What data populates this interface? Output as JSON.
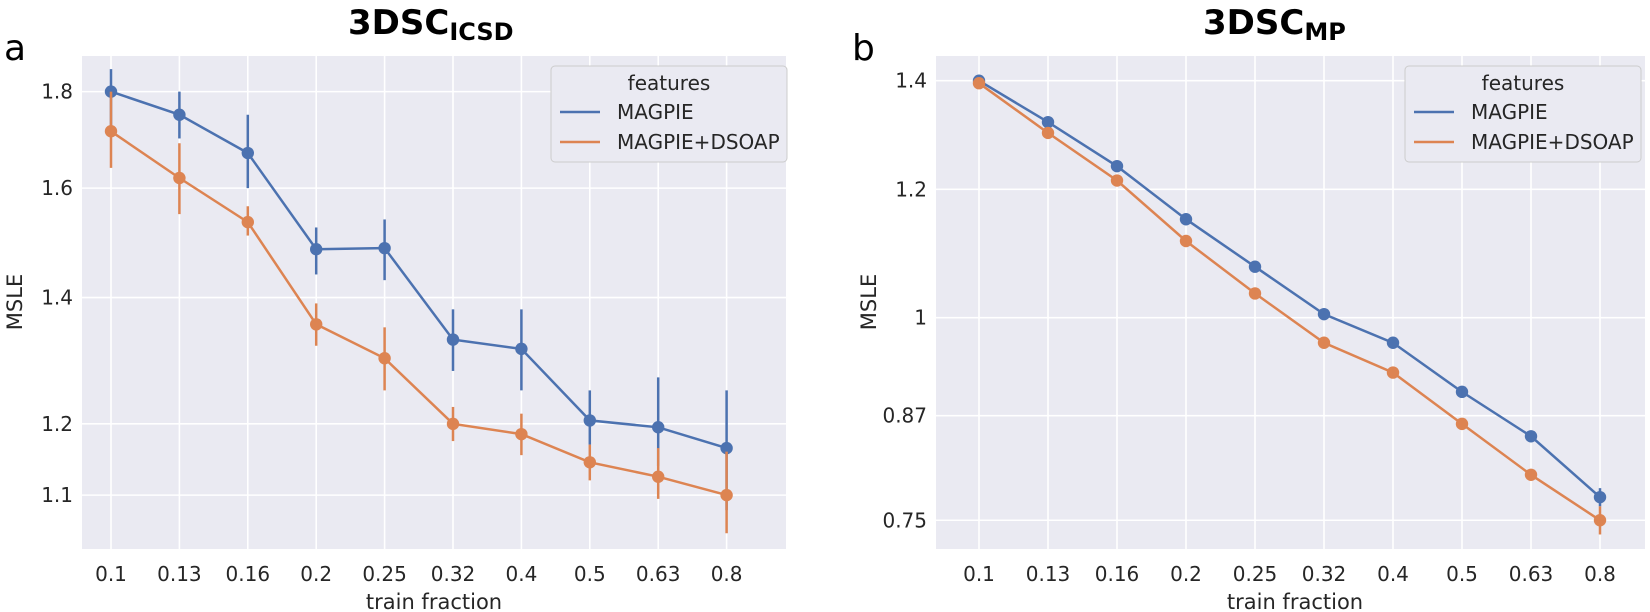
{
  "chart_data": [
    {
      "panel_label": "a",
      "type": "line",
      "title_main": "3DSC",
      "title_sub": "ICSD",
      "xlabel": "train fraction",
      "ylabel": "MSLE",
      "categories": [
        "0.1",
        "0.13",
        "0.16",
        "0.2",
        "0.25",
        "0.32",
        "0.4",
        "0.5",
        "0.63",
        "0.8"
      ],
      "yticks": [
        1.1,
        1.2,
        1.4,
        1.6,
        1.8
      ],
      "ytick_labels": [
        "1.1",
        "1.2",
        "1.4",
        "1.6",
        "1.8"
      ],
      "y_scale": "log",
      "ylim": [
        1.03,
        1.88
      ],
      "grid": true,
      "legend": {
        "title": "features",
        "position": "top-right"
      },
      "series": [
        {
          "name": "MAGPIE",
          "color": "#4c72b0",
          "values": [
            1.8,
            1.75,
            1.67,
            1.485,
            1.487,
            1.33,
            1.315,
            1.205,
            1.195,
            1.165
          ],
          "err_low": [
            1.71,
            1.7,
            1.6,
            1.44,
            1.43,
            1.28,
            1.25,
            1.17,
            1.14,
            1.08
          ],
          "err_high": [
            1.85,
            1.8,
            1.75,
            1.525,
            1.54,
            1.38,
            1.38,
            1.25,
            1.27,
            1.25
          ]
        },
        {
          "name": "MAGPIE+DSOAP",
          "color": "#dd8452",
          "values": [
            1.715,
            1.62,
            1.535,
            1.355,
            1.3,
            1.2,
            1.185,
            1.145,
            1.125,
            1.1
          ],
          "err_low": [
            1.64,
            1.55,
            1.51,
            1.32,
            1.25,
            1.175,
            1.155,
            1.12,
            1.095,
            1.05
          ],
          "err_high": [
            1.8,
            1.69,
            1.565,
            1.39,
            1.35,
            1.225,
            1.215,
            1.17,
            1.165,
            1.16
          ]
        }
      ]
    },
    {
      "panel_label": "b",
      "type": "line",
      "title_main": "3DSC",
      "title_sub": "MP",
      "xlabel": "train fraction",
      "ylabel": "MSLE",
      "categories": [
        "0.1",
        "0.13",
        "0.16",
        "0.2",
        "0.25",
        "0.32",
        "0.4",
        "0.5",
        "0.63",
        "0.8"
      ],
      "yticks": [
        0.75,
        0.87,
        1.0,
        1.2,
        1.4
      ],
      "ytick_labels": [
        "0.75",
        "0.87",
        "1",
        "1.2",
        "1.4"
      ],
      "y_scale": "log",
      "ylim": [
        0.72,
        1.45
      ],
      "grid": true,
      "legend": {
        "title": "features",
        "position": "top-right"
      },
      "series": [
        {
          "name": "MAGPIE",
          "color": "#4c72b0",
          "values": [
            1.4,
            1.32,
            1.24,
            1.15,
            1.075,
            1.005,
            0.965,
            0.9,
            0.845,
            0.775
          ],
          "err_low": [
            1.39,
            1.31,
            1.235,
            1.145,
            1.07,
            1.0,
            0.96,
            0.895,
            0.838,
            0.765
          ],
          "err_high": [
            1.41,
            1.33,
            1.245,
            1.155,
            1.08,
            1.01,
            0.97,
            0.905,
            0.852,
            0.785
          ]
        },
        {
          "name": "MAGPIE+DSOAP",
          "color": "#dd8452",
          "values": [
            1.395,
            1.3,
            1.215,
            1.115,
            1.035,
            0.965,
            0.925,
            0.86,
            0.8,
            0.75
          ],
          "err_low": [
            1.385,
            1.29,
            1.21,
            1.11,
            1.03,
            0.96,
            0.92,
            0.855,
            0.795,
            0.735
          ],
          "err_high": [
            1.405,
            1.31,
            1.22,
            1.12,
            1.04,
            0.97,
            0.93,
            0.865,
            0.805,
            0.765
          ]
        }
      ]
    }
  ]
}
